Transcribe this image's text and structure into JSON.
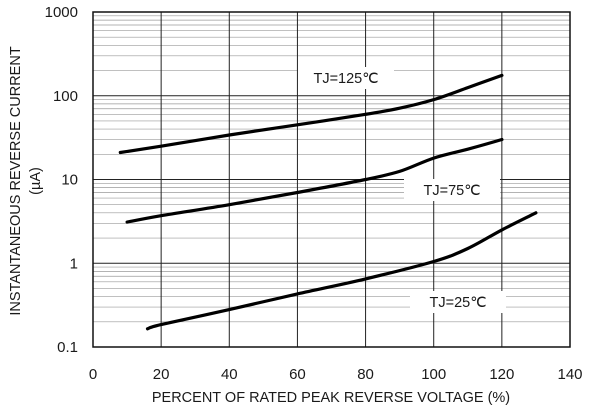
{
  "chart_data": {
    "type": "line",
    "title": "",
    "xlabel": "PERCENT OF RATED PEAK REVERSE VOLTAGE (%)",
    "ylabel": "INSTANTANEOUS REVERSE CURRENT",
    "ylabel_unit": "(µA)",
    "xlim": [
      0,
      140
    ],
    "ylim": [
      0.1,
      1000
    ],
    "yscale": "log",
    "grid": true,
    "xticks": [
      "0",
      "20",
      "40",
      "60",
      "80",
      "100",
      "120",
      "140"
    ],
    "yticks": [
      "0.1",
      "1",
      "10",
      "100",
      "1000"
    ],
    "series": [
      {
        "name": "TJ=125℃",
        "x": [
          8,
          20,
          40,
          60,
          80,
          90,
          100,
          110,
          120
        ],
        "y": [
          21,
          25,
          34,
          45,
          60,
          71,
          90,
          125,
          175
        ]
      },
      {
        "name": "TJ=75℃",
        "x": [
          10,
          20,
          40,
          60,
          80,
          90,
          100,
          110,
          120
        ],
        "y": [
          3.1,
          3.7,
          5.0,
          7.0,
          10,
          12.5,
          18,
          23,
          30
        ]
      },
      {
        "name": "TJ=25℃",
        "x": [
          16,
          20,
          40,
          60,
          80,
          100,
          110,
          120,
          130
        ],
        "y": [
          0.165,
          0.185,
          0.28,
          0.43,
          0.65,
          1.05,
          1.5,
          2.5,
          4.0
        ]
      }
    ]
  }
}
